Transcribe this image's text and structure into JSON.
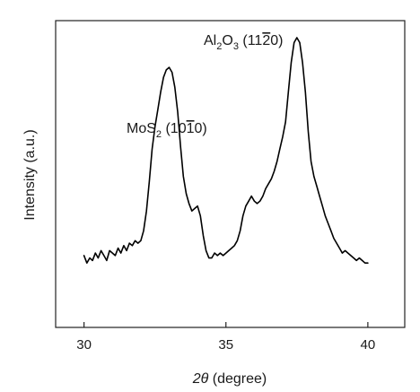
{
  "chart_data": {
    "type": "line",
    "title": "",
    "xlabel_symbol": "2θ",
    "xlabel_rest": " (degree)",
    "ylabel": "Intensity (a.u.)",
    "xlim": [
      29,
      41.3
    ],
    "ylim": [
      0,
      100
    ],
    "xticks": [
      30,
      35,
      40
    ],
    "yticks": [],
    "grid": false,
    "legend": "none",
    "line_color": "#000000",
    "series": [
      {
        "x": [
          30.0,
          30.1,
          30.2,
          30.3,
          30.4,
          30.5,
          30.6,
          30.7,
          30.8,
          30.9,
          31.0,
          31.1,
          31.2,
          31.3,
          31.4,
          31.5,
          31.6,
          31.7,
          31.8,
          31.9,
          32.0,
          32.1,
          32.2,
          32.3,
          32.4,
          32.5,
          32.6,
          32.7,
          32.8,
          32.9,
          33.0,
          33.1,
          33.2,
          33.3,
          33.4,
          33.5,
          33.6,
          33.7,
          33.8,
          33.9,
          34.0,
          34.1,
          34.2,
          34.3,
          34.4,
          34.5,
          34.6,
          34.7,
          34.8,
          34.9,
          35.0,
          35.1,
          35.2,
          35.3,
          35.4,
          35.5,
          35.6,
          35.7,
          35.8,
          35.9,
          36.0,
          36.1,
          36.2,
          36.3,
          36.4,
          36.5,
          36.6,
          36.7,
          36.8,
          36.9,
          37.0,
          37.1,
          37.2,
          37.3,
          37.4,
          37.5,
          37.6,
          37.7,
          37.8,
          37.9,
          38.0,
          38.1,
          38.2,
          38.3,
          38.4,
          38.5,
          38.6,
          38.7,
          38.8,
          38.9,
          39.0,
          39.1,
          39.2,
          39.3,
          39.4,
          39.5,
          39.6,
          39.7,
          39.8,
          39.9,
          40.0
        ],
        "y": [
          12,
          9,
          11,
          10,
          13,
          11,
          14,
          12,
          10,
          14,
          13,
          12,
          15,
          13,
          16,
          14,
          17,
          16,
          18,
          17,
          18,
          22,
          30,
          42,
          55,
          64,
          71,
          78,
          84,
          87,
          88,
          86,
          80,
          70,
          56,
          44,
          37,
          33,
          30,
          31,
          32,
          28,
          20,
          14,
          11,
          11,
          13,
          12,
          13,
          12,
          13,
          14,
          15,
          16,
          18,
          22,
          28,
          32,
          34,
          36,
          34,
          33,
          34,
          36,
          39,
          41,
          43,
          46,
          50,
          55,
          60,
          66,
          78,
          90,
          98,
          100,
          98,
          90,
          78,
          62,
          50,
          44,
          40,
          36,
          32,
          28,
          25,
          22,
          19,
          17,
          15,
          13,
          14,
          13,
          12,
          11,
          10,
          11,
          10,
          9,
          9
        ]
      }
    ],
    "annotations": [
      {
        "base": "MoS",
        "sub": "2",
        "rest": " (10",
        "bar": "1",
        "end": "0)",
        "x": 33.0,
        "y": 88
      },
      {
        "base": "Al",
        "sub": "2",
        "mid": "O",
        "sub2": "3",
        "rest": " (11",
        "bar": "2",
        "end": "0)",
        "x": 37.8,
        "y": 100
      }
    ]
  }
}
